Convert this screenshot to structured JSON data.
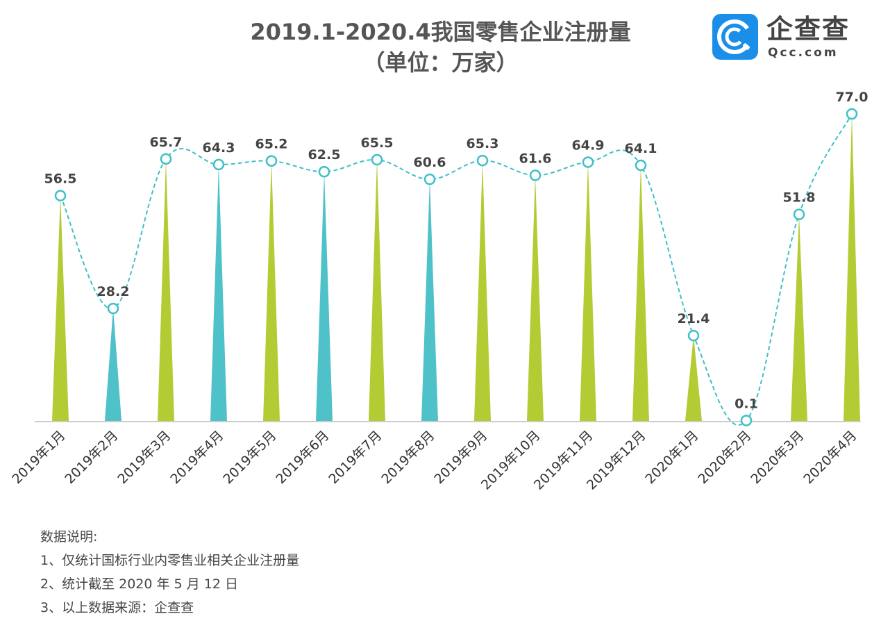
{
  "header": {
    "title_line1": "2019.1-2020.4我国零售企业注册量",
    "title_line2": "（单位：万家）"
  },
  "logo": {
    "name": "企查查",
    "site": "Qcc.com",
    "brand_color": "#1a8ee8"
  },
  "chart_data": {
    "type": "bar",
    "title": "2019.1-2020.4我国零售企业注册量（单位：万家）",
    "categories": [
      "2019年1月",
      "2019年2月",
      "2019年3月",
      "2019年4月",
      "2019年5月",
      "2019年6月",
      "2019年7月",
      "2019年8月",
      "2019年9月",
      "2019年10月",
      "2019年11月",
      "2019年12月",
      "2020年1月",
      "2020年2月",
      "2020年3月",
      "2020年4月"
    ],
    "values": [
      56.5,
      28.2,
      65.7,
      64.3,
      65.2,
      62.5,
      65.5,
      60.6,
      65.3,
      61.6,
      64.9,
      64.1,
      21.4,
      0.1,
      51.8,
      77.0
    ],
    "labels": [
      "56.5",
      "28.2",
      "65.7",
      "64.3",
      "65.2",
      "62.5",
      "65.5",
      "60.6",
      "65.3",
      "61.6",
      "64.9",
      "64.1",
      "21.4",
      "0.1",
      "51.8",
      "77.0"
    ],
    "bar_colors": [
      "#b3cc33",
      "#4fc1c9",
      "#b3cc33",
      "#4fc1c9",
      "#b3cc33",
      "#4fc1c9",
      "#b3cc33",
      "#4fc1c9",
      "#b3cc33",
      "#b3cc33",
      "#b3cc33",
      "#b3cc33",
      "#b3cc33",
      "#4fc1c9",
      "#b3cc33",
      "#b3cc33"
    ],
    "line_color": "#3ebfc9",
    "ylim": [
      0,
      77
    ],
    "xlabel": "",
    "ylabel": "",
    "grid": false
  },
  "notes": {
    "heading": "数据说明:",
    "line1": "1、仅统计国标行业内零售业相关企业注册量",
    "line2": "2、统计截至 2020 年 5 月 12 日",
    "line3": "3、以上数据来源：企查查"
  }
}
